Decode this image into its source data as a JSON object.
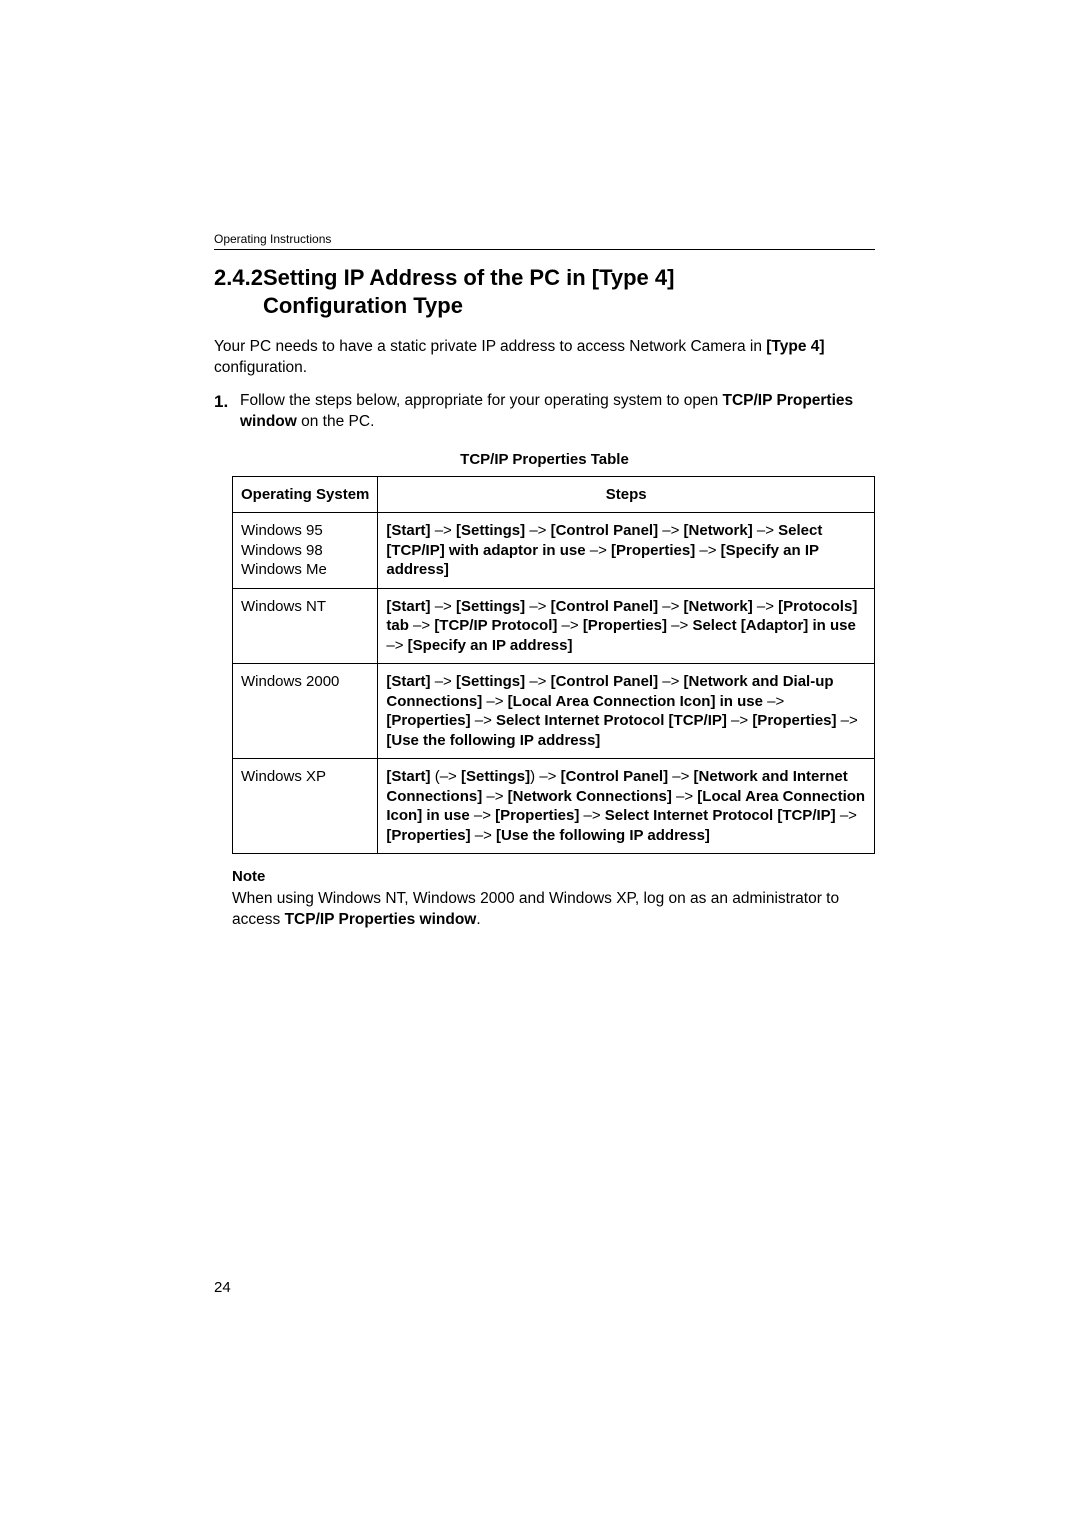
{
  "header": {
    "running": "Operating Instructions"
  },
  "section": {
    "number": "2.4.2",
    "title_line1": "Setting IP Address of the PC in [Type 4]",
    "title_line2": "Configuration Type"
  },
  "intro": {
    "text_before": "Your PC needs to have a static private IP address to access Network Camera in ",
    "bold": "[Type 4]",
    "text_after": " configuration."
  },
  "step1": {
    "number": "1.",
    "text_before": "Follow the steps below, appropriate for your operating system to open ",
    "bold": "TCP/IP Properties window",
    "text_after": " on the PC."
  },
  "table": {
    "title": "TCP/IP Properties Table",
    "columns": [
      "Operating System",
      "Steps"
    ],
    "rows": [
      {
        "os_lines": [
          "Windows 95",
          "Windows 98",
          "Windows Me"
        ],
        "segments": [
          {
            "b": true,
            "t": "[Start]"
          },
          {
            "b": false,
            "t": " –> "
          },
          {
            "b": true,
            "t": "[Settings]"
          },
          {
            "b": false,
            "t": " –> "
          },
          {
            "b": true,
            "t": "[Control Panel]"
          },
          {
            "b": false,
            "t": " –> "
          },
          {
            "b": true,
            "t": "[Network]"
          },
          {
            "b": false,
            "t": " –> "
          },
          {
            "b": true,
            "t": "Select [TCP/IP] with adaptor in use"
          },
          {
            "b": false,
            "t": " –> "
          },
          {
            "b": true,
            "t": "[Properties]"
          },
          {
            "b": false,
            "t": " –> "
          },
          {
            "b": true,
            "t": "[Specify an IP address]"
          }
        ]
      },
      {
        "os_lines": [
          "Windows NT"
        ],
        "segments": [
          {
            "b": true,
            "t": "[Start]"
          },
          {
            "b": false,
            "t": " –> "
          },
          {
            "b": true,
            "t": "[Settings]"
          },
          {
            "b": false,
            "t": " –> "
          },
          {
            "b": true,
            "t": "[Control Panel]"
          },
          {
            "b": false,
            "t": " –> "
          },
          {
            "b": true,
            "t": "[Network]"
          },
          {
            "b": false,
            "t": " –> "
          },
          {
            "b": true,
            "t": "[Protocols] tab"
          },
          {
            "b": false,
            "t": " –> "
          },
          {
            "b": true,
            "t": "[TCP/IP Protocol]"
          },
          {
            "b": false,
            "t": " –> "
          },
          {
            "b": true,
            "t": "[Properties]"
          },
          {
            "b": false,
            "t": " –> "
          },
          {
            "b": true,
            "t": "Select [Adaptor] in use"
          },
          {
            "b": false,
            "t": " –> "
          },
          {
            "b": true,
            "t": "[Specify an IP address]"
          }
        ]
      },
      {
        "os_lines": [
          "Windows 2000"
        ],
        "segments": [
          {
            "b": true,
            "t": "[Start]"
          },
          {
            "b": false,
            "t": " –> "
          },
          {
            "b": true,
            "t": "[Settings]"
          },
          {
            "b": false,
            "t": " –> "
          },
          {
            "b": true,
            "t": "[Control Panel]"
          },
          {
            "b": false,
            "t": " –> "
          },
          {
            "b": true,
            "t": "[Network and Dial-up Connections]"
          },
          {
            "b": false,
            "t": " –> "
          },
          {
            "b": true,
            "t": "[Local Area Connection Icon] in use"
          },
          {
            "b": false,
            "t": " –> "
          },
          {
            "b": true,
            "t": "[Properties]"
          },
          {
            "b": false,
            "t": " –> "
          },
          {
            "b": true,
            "t": "Select Internet Protocol [TCP/IP]"
          },
          {
            "b": false,
            "t": " –> "
          },
          {
            "b": true,
            "t": "[Properties]"
          },
          {
            "b": false,
            "t": " –> "
          },
          {
            "b": true,
            "t": "[Use the following IP address]"
          }
        ]
      },
      {
        "os_lines": [
          "Windows XP"
        ],
        "segments": [
          {
            "b": true,
            "t": "[Start]"
          },
          {
            "b": false,
            "t": " (–> "
          },
          {
            "b": true,
            "t": "[Settings]"
          },
          {
            "b": false,
            "t": ") –> "
          },
          {
            "b": true,
            "t": "[Control Panel]"
          },
          {
            "b": false,
            "t": " –> "
          },
          {
            "b": true,
            "t": "[Network and Internet Connections]"
          },
          {
            "b": false,
            "t": " –> "
          },
          {
            "b": true,
            "t": "[Network Connections]"
          },
          {
            "b": false,
            "t": " –> "
          },
          {
            "b": true,
            "t": "[Local Area Connection Icon] in use"
          },
          {
            "b": false,
            "t": " –> "
          },
          {
            "b": true,
            "t": "[Properties]"
          },
          {
            "b": false,
            "t": " –> "
          },
          {
            "b": true,
            "t": "Select Internet Protocol [TCP/IP]"
          },
          {
            "b": false,
            "t": " –> "
          },
          {
            "b": true,
            "t": "[Properties]"
          },
          {
            "b": false,
            "t": " –> "
          },
          {
            "b": true,
            "t": "[Use the following IP address]"
          }
        ]
      }
    ]
  },
  "note": {
    "heading": "Note",
    "text_before": "When using Windows NT, Windows 2000 and Windows XP, log on as an administrator to access ",
    "bold": "TCP/IP Properties window",
    "text_after": "."
  },
  "page_number": "24"
}
